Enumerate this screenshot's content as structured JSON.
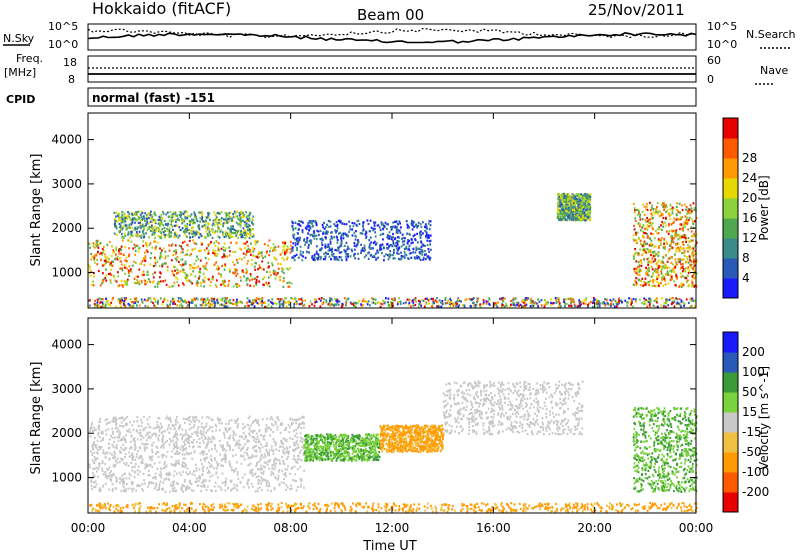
{
  "header": {
    "site": "Hokkaido (fitACF)",
    "beam": "Beam 00",
    "date": "25/Nov/2011"
  },
  "labels": {
    "nsky": "N.Sky",
    "nsearch": "N.Search",
    "freq_line1": "Freq.",
    "freq_line2": "[MHz]",
    "nave": "Nave",
    "cpid": "CPID",
    "cpid_value": "normal (fast) -151",
    "noise_left_top": "10^5",
    "noise_left_bottom": "10^0",
    "noise_right_top": "10^5",
    "noise_right_bottom": "10^0",
    "freq_left_top": "18",
    "freq_left_bottom": "8",
    "nave_right_top": "60",
    "nave_right_bottom": "0"
  },
  "colors": {
    "power": [
      "#1a1aff",
      "#2a5ab8",
      "#3a8c8c",
      "#4fa84f",
      "#8cd23c",
      "#e6d800",
      "#ff9a00",
      "#ff5a00",
      "#e60000"
    ],
    "velocity": [
      "#e60000",
      "#ff5a00",
      "#ff9a00",
      "#f0c040",
      "#c8c8c8",
      "#7ad23c",
      "#3a9a3a",
      "#2a5ab8",
      "#1a1aff"
    ],
    "ground_scatter": "#c8c8c8"
  },
  "chart_data": [
    {
      "type": "heatmap",
      "panel": "power",
      "ylabel": "Slant Range [km]",
      "ylim": [
        200,
        4600
      ],
      "yticks": [
        1000,
        2000,
        3000,
        4000
      ],
      "xticks": [
        "00:00",
        "04:00",
        "08:00",
        "12:00",
        "16:00",
        "20:00",
        "00:00"
      ],
      "colorbar_label": "Power [dB]",
      "colorbar_ticks": [
        "4",
        "8",
        "12",
        "16",
        "20",
        "24",
        "28"
      ],
      "regions": [
        {
          "t": [
            0.0,
            8.0
          ],
          "range": [
            700,
            1750
          ],
          "value_class": "strong"
        },
        {
          "t": [
            1.0,
            6.5
          ],
          "range": [
            1800,
            2400
          ],
          "value_class": "medium"
        },
        {
          "t": [
            8.0,
            13.5
          ],
          "range": [
            1300,
            2200
          ],
          "value_class": "weak"
        },
        {
          "t": [
            18.5,
            19.8
          ],
          "range": [
            2200,
            2800
          ],
          "value_class": "medium"
        },
        {
          "t": [
            21.5,
            24.0
          ],
          "range": [
            700,
            2600
          ],
          "value_class": "strong"
        },
        {
          "t": [
            0.0,
            24.0
          ],
          "range": [
            250,
            450
          ],
          "value_class": "speckle"
        }
      ]
    },
    {
      "type": "heatmap",
      "panel": "velocity",
      "ylabel": "Slant Range [km]",
      "ylim": [
        200,
        4600
      ],
      "yticks": [
        1000,
        2000,
        3000,
        4000
      ],
      "xticks": [
        "00:00",
        "04:00",
        "08:00",
        "12:00",
        "16:00",
        "20:00",
        "00:00"
      ],
      "xlabel": "Time UT",
      "colorbar_label": "Velocity [m s^-1]",
      "colorbar_ticks": [
        "-200",
        "-100",
        "-50",
        "-15",
        "15",
        "50",
        "100",
        "200"
      ],
      "regions": [
        {
          "t": [
            0.0,
            8.5
          ],
          "range": [
            700,
            1600
          ],
          "value_class": "ground"
        },
        {
          "t": [
            0.0,
            8.5
          ],
          "range": [
            1600,
            2400
          ],
          "value_class": "ground"
        },
        {
          "t": [
            8.5,
            11.5
          ],
          "range": [
            1400,
            2000
          ],
          "value_class": "green"
        },
        {
          "t": [
            11.5,
            14.0
          ],
          "range": [
            1600,
            2200
          ],
          "value_class": "orange"
        },
        {
          "t": [
            14.0,
            19.5
          ],
          "range": [
            2000,
            3200
          ],
          "value_class": "ground"
        },
        {
          "t": [
            21.5,
            24.0
          ],
          "range": [
            700,
            2600
          ],
          "value_class": "green"
        },
        {
          "t": [
            0.0,
            24.0
          ],
          "range": [
            250,
            450
          ],
          "value_class": "orange"
        }
      ]
    }
  ]
}
